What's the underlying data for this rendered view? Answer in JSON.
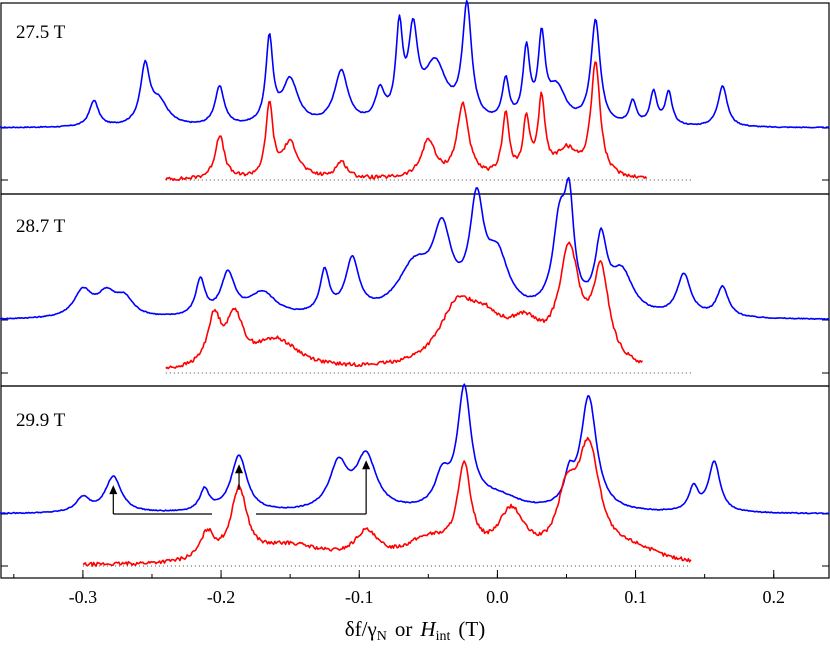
{
  "colors": {
    "frame": "#000000",
    "blue": "#0000ff",
    "red": "#ff0000"
  },
  "chart_data": {
    "type": "line",
    "x_axis_label": {
      "main": "δf/γ",
      "sub_N": "N",
      "mid": "or",
      "main2": "H",
      "sub_int": "int",
      "unit": "(T)"
    },
    "xlim": [
      -0.36,
      0.24
    ],
    "xticks": [
      -0.3,
      -0.2,
      -0.1,
      0.0,
      0.1,
      0.2
    ],
    "xtick_labels": [
      "-0.3",
      "-0.2",
      "-0.1",
      "0.0",
      "0.1",
      "0.2"
    ],
    "panels": [
      {
        "label": "27.5 T",
        "series": [
          {
            "name": "blue",
            "color": "#0000ff",
            "x_range": [
              -0.36,
              0.24
            ],
            "baseline": 0.05,
            "peaks": [
              [
                -0.292,
                0.22,
                0.004
              ],
              [
                -0.255,
                0.48,
                0.004
              ],
              [
                -0.245,
                0.2,
                0.008
              ],
              [
                -0.201,
                0.33,
                0.004
              ],
              [
                -0.165,
                0.72,
                0.003
              ],
              [
                -0.15,
                0.38,
                0.007
              ],
              [
                -0.113,
                0.45,
                0.006
              ],
              [
                -0.085,
                0.25,
                0.004
              ],
              [
                -0.071,
                0.75,
                0.003
              ],
              [
                -0.061,
                0.7,
                0.004
              ],
              [
                -0.045,
                0.5,
                0.01
              ],
              [
                -0.022,
                0.97,
                0.004
              ],
              [
                0.006,
                0.35,
                0.003
              ],
              [
                0.021,
                0.6,
                0.003
              ],
              [
                0.032,
                0.68,
                0.003
              ],
              [
                0.043,
                0.3,
                0.008
              ],
              [
                0.071,
                0.88,
                0.004
              ],
              [
                0.098,
                0.2,
                0.003
              ],
              [
                0.113,
                0.28,
                0.003
              ],
              [
                0.124,
                0.28,
                0.003
              ],
              [
                0.163,
                0.35,
                0.004
              ]
            ]
          },
          {
            "name": "red",
            "color": "#ff0000",
            "x_range": [
              -0.24,
              0.108
            ],
            "baseline": 0.05,
            "peaks": [
              [
                -0.201,
                0.37,
                0.004
              ],
              [
                -0.165,
                0.62,
                0.003
              ],
              [
                -0.15,
                0.3,
                0.007
              ],
              [
                -0.113,
                0.14,
                0.005
              ],
              [
                -0.05,
                0.32,
                0.006
              ],
              [
                -0.025,
                0.62,
                0.005
              ],
              [
                0.006,
                0.53,
                0.003
              ],
              [
                0.021,
                0.46,
                0.003
              ],
              [
                0.032,
                0.63,
                0.003
              ],
              [
                0.05,
                0.23,
                0.01
              ],
              [
                0.071,
                0.96,
                0.004
              ]
            ]
          }
        ],
        "baseline_zero_x": [
          -0.24,
          0.14
        ]
      },
      {
        "label": "28.7 T",
        "series": [
          {
            "name": "blue",
            "color": "#0000ff",
            "x_range": [
              -0.36,
              0.24
            ],
            "baseline": 0.05,
            "peaks": [
              [
                -0.3,
                0.22,
                0.008
              ],
              [
                -0.283,
                0.18,
                0.008
              ],
              [
                -0.27,
                0.15,
                0.008
              ],
              [
                -0.215,
                0.3,
                0.004
              ],
              [
                -0.195,
                0.35,
                0.006
              ],
              [
                -0.17,
                0.2,
                0.012
              ],
              [
                -0.125,
                0.35,
                0.004
              ],
              [
                -0.105,
                0.45,
                0.006
              ],
              [
                -0.06,
                0.4,
                0.015
              ],
              [
                -0.04,
                0.62,
                0.008
              ],
              [
                -0.015,
                0.85,
                0.006
              ],
              [
                0.0,
                0.45,
                0.01
              ],
              [
                0.045,
                0.72,
                0.006
              ],
              [
                0.052,
                0.78,
                0.004
              ],
              [
                0.075,
                0.58,
                0.005
              ],
              [
                0.09,
                0.35,
                0.01
              ],
              [
                0.135,
                0.35,
                0.006
              ],
              [
                0.163,
                0.25,
                0.005
              ]
            ]
          },
          {
            "name": "red",
            "color": "#ff0000",
            "x_range": [
              -0.24,
              0.105
            ],
            "baseline": 0.05,
            "peaks": [
              [
                -0.205,
                0.4,
                0.006
              ],
              [
                -0.19,
                0.4,
                0.007
              ],
              [
                -0.16,
                0.25,
                0.02
              ],
              [
                -0.03,
                0.4,
                0.015
              ],
              [
                -0.01,
                0.35,
                0.02
              ],
              [
                0.02,
                0.28,
                0.015
              ],
              [
                0.052,
                0.92,
                0.009
              ],
              [
                0.075,
                0.75,
                0.007
              ]
            ]
          }
        ],
        "baseline_zero_x": [
          -0.24,
          0.14
        ]
      },
      {
        "label": "29.9 T",
        "series": [
          {
            "name": "blue",
            "color": "#0000ff",
            "x_range": [
              -0.36,
              0.24
            ],
            "baseline": 0.05,
            "peaks": [
              [
                -0.3,
                0.12,
                0.006
              ],
              [
                -0.278,
                0.3,
                0.007
              ],
              [
                -0.212,
                0.18,
                0.004
              ],
              [
                -0.187,
                0.47,
                0.007
              ],
              [
                -0.115,
                0.38,
                0.008
              ],
              [
                -0.095,
                0.45,
                0.009
              ],
              [
                -0.04,
                0.25,
                0.006
              ],
              [
                -0.024,
                0.98,
                0.006
              ],
              [
                0.0,
                0.12,
                0.02
              ],
              [
                0.052,
                0.22,
                0.004
              ],
              [
                0.066,
                0.95,
                0.007
              ],
              [
                0.142,
                0.2,
                0.004
              ],
              [
                0.157,
                0.42,
                0.005
              ]
            ]
          },
          {
            "name": "red",
            "color": "#ff0000",
            "x_range": [
              -0.3,
              0.14
            ],
            "baseline": 0.05,
            "peaks": [
              [
                -0.21,
                0.22,
                0.006
              ],
              [
                -0.187,
                0.58,
                0.007
              ],
              [
                -0.15,
                0.15,
                0.03
              ],
              [
                -0.095,
                0.22,
                0.01
              ],
              [
                -0.05,
                0.18,
                0.02
              ],
              [
                -0.024,
                0.72,
                0.006
              ],
              [
                0.01,
                0.4,
                0.012
              ],
              [
                0.05,
                0.45,
                0.008
              ],
              [
                0.066,
                0.92,
                0.01
              ],
              [
                0.1,
                0.1,
                0.02
              ]
            ]
          }
        ],
        "baseline_zero_x": [
          -0.3,
          0.14
        ],
        "arrows_x": [
          -0.278,
          -0.187,
          -0.095
        ]
      }
    ]
  }
}
